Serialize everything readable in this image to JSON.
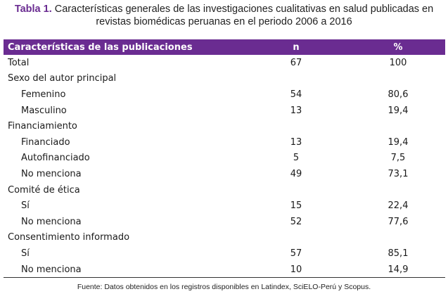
{
  "caption": {
    "label": "Tabla 1.",
    "line1": "Características generales de las investigaciones cualitativas en salud publicadas en",
    "line2": "revistas biomédicas peruanas en el periodo 2006 a 2016"
  },
  "table": {
    "headers": {
      "characteristic": "Características de las publicaciones",
      "n": "n",
      "pct": "%"
    },
    "rows": [
      {
        "label": "Total",
        "n": "67",
        "pct": "100"
      },
      {
        "label": "Sexo del autor principal",
        "n": "",
        "pct": ""
      },
      {
        "label": "Femenino",
        "n": "54",
        "pct": "80,6"
      },
      {
        "label": "Masculino",
        "n": "13",
        "pct": "19,4"
      },
      {
        "label": "Financiamiento",
        "n": "",
        "pct": ""
      },
      {
        "label": "Financiado",
        "n": "13",
        "pct": "19,4"
      },
      {
        "label": "Autofinanciado",
        "n": "5",
        "pct": "7,5"
      },
      {
        "label": "No menciona",
        "n": "49",
        "pct": "73,1"
      },
      {
        "label": "Comité de ética",
        "n": "",
        "pct": ""
      },
      {
        "label": "Sí",
        "n": "15",
        "pct": "22,4"
      },
      {
        "label": "No menciona",
        "n": "52",
        "pct": "77,6"
      },
      {
        "label": "Consentimiento informado",
        "n": "",
        "pct": ""
      },
      {
        "label": "Sí",
        "n": "57",
        "pct": "85,1"
      },
      {
        "label": "No menciona",
        "n": "10",
        "pct": "14,9"
      }
    ]
  },
  "footnote": "Fuente: Datos obtenidos en los registros disponibles en Latindex, SciELO-Perú y Scopus.",
  "colors": {
    "header_bg": "#6a2c91",
    "header_text": "#ffffff",
    "caption_label": "#6a2c91"
  }
}
